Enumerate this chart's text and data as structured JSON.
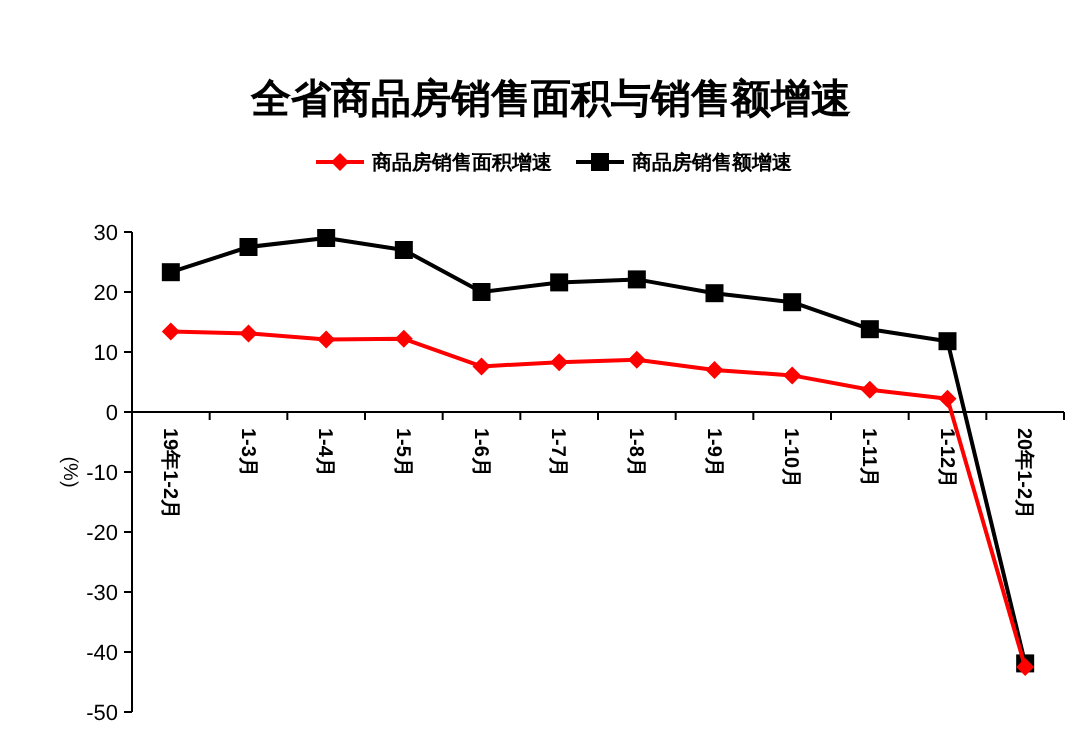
{
  "chart_data": {
    "type": "line",
    "title": "全省商品房销售面积与销售额增速",
    "ylabel": "(%)",
    "categories": [
      "19年1-2月",
      "1-3月",
      "1-4月",
      "1-5月",
      "1-6月",
      "1-7月",
      "1-8月",
      "1-9月",
      "1-10月",
      "1-11月",
      "1-12月",
      "20年1-2月"
    ],
    "series": [
      {
        "name": "商品房销售面积增速",
        "color": "#ff0000",
        "marker": "diamond",
        "values": [
          13.4,
          13.1,
          12.1,
          12.2,
          7.6,
          8.3,
          8.7,
          7.0,
          6.1,
          3.7,
          2.2,
          -42.5
        ]
      },
      {
        "name": "商品房销售额增速",
        "color": "#000000",
        "marker": "square",
        "values": [
          23.3,
          27.5,
          29.0,
          27.0,
          20.0,
          21.6,
          22.1,
          19.8,
          18.3,
          13.8,
          11.8,
          -41.9
        ]
      }
    ],
    "ylim": [
      -50,
      30
    ],
    "yticks": [
      -50,
      -40,
      -30,
      -20,
      -10,
      0,
      10,
      20,
      30
    ],
    "grid": false,
    "legend": "top",
    "line_style": "solid"
  }
}
